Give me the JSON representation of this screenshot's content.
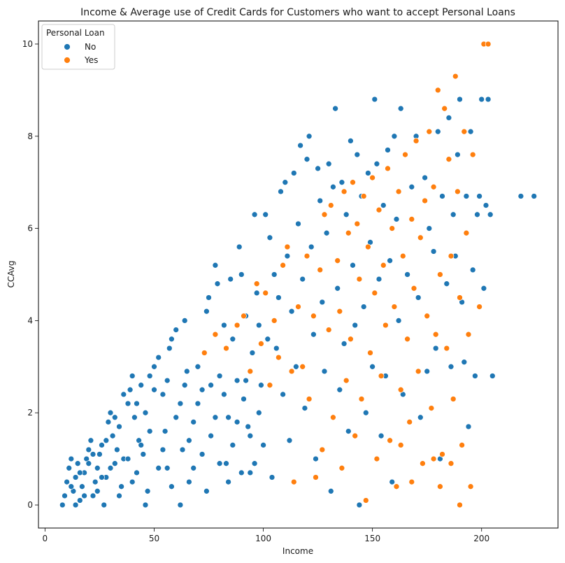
{
  "chart_data": {
    "type": "scatter",
    "title": "Income & Average use of Credit Cards for Customers who want to accept Personal Loans",
    "xlabel": "Income",
    "ylabel": "CCAvg",
    "xlim": [
      -3,
      235
    ],
    "ylim": [
      -0.5,
      10.5
    ],
    "xticks": [
      0,
      50,
      100,
      150,
      200
    ],
    "yticks": [
      0,
      2,
      4,
      6,
      8,
      10
    ],
    "grid": false,
    "legend": {
      "title": "Personal Loan",
      "placement": "top-left",
      "entries": [
        {
          "label": "No",
          "color": "#1f77b4"
        },
        {
          "label": "Yes",
          "color": "#ff7f0e"
        }
      ]
    },
    "series": [
      {
        "name": "No",
        "color": "#1f77b4",
        "points": [
          [
            8,
            0.0
          ],
          [
            9,
            0.2
          ],
          [
            10,
            0.5
          ],
          [
            11,
            0.8
          ],
          [
            12,
            1.0
          ],
          [
            13,
            0.3
          ],
          [
            14,
            0.6
          ],
          [
            15,
            0.9
          ],
          [
            16,
            0.1
          ],
          [
            17,
            0.4
          ],
          [
            18,
            0.7
          ],
          [
            19,
            1.0
          ],
          [
            20,
            1.2
          ],
          [
            21,
            1.4
          ],
          [
            22,
            0.2
          ],
          [
            23,
            0.5
          ],
          [
            24,
            0.8
          ],
          [
            25,
            1.1
          ],
          [
            26,
            1.3
          ],
          [
            27,
            0.0
          ],
          [
            28,
            0.6
          ],
          [
            29,
            1.8
          ],
          [
            30,
            2.0
          ],
          [
            31,
            1.5
          ],
          [
            32,
            0.9
          ],
          [
            33,
            1.2
          ],
          [
            34,
            1.7
          ],
          [
            35,
            0.4
          ],
          [
            36,
            1.0
          ],
          [
            38,
            2.2
          ],
          [
            39,
            2.5
          ],
          [
            40,
            2.8
          ],
          [
            41,
            1.9
          ],
          [
            42,
            0.7
          ],
          [
            43,
            1.4
          ],
          [
            44,
            2.6
          ],
          [
            45,
            1.1
          ],
          [
            46,
            2.0
          ],
          [
            47,
            0.3
          ],
          [
            48,
            2.8
          ],
          [
            50,
            3.0
          ],
          [
            52,
            3.2
          ],
          [
            54,
            2.4
          ],
          [
            55,
            1.6
          ],
          [
            56,
            0.8
          ],
          [
            57,
            3.4
          ],
          [
            58,
            3.6
          ],
          [
            60,
            3.8
          ],
          [
            62,
            2.2
          ],
          [
            63,
            1.2
          ],
          [
            64,
            4.0
          ],
          [
            65,
            2.9
          ],
          [
            66,
            0.5
          ],
          [
            68,
            1.8
          ],
          [
            70,
            3.0
          ],
          [
            72,
            2.5
          ],
          [
            74,
            4.2
          ],
          [
            75,
            4.5
          ],
          [
            76,
            1.5
          ],
          [
            78,
            5.2
          ],
          [
            79,
            4.8
          ],
          [
            80,
            2.8
          ],
          [
            82,
            3.9
          ],
          [
            83,
            0.9
          ],
          [
            84,
            1.9
          ],
          [
            85,
            4.9
          ],
          [
            86,
            3.6
          ],
          [
            88,
            2.7
          ],
          [
            89,
            5.6
          ],
          [
            90,
            5.0
          ],
          [
            91,
            2.3
          ],
          [
            92,
            4.1
          ],
          [
            93,
            1.7
          ],
          [
            94,
            0.7
          ],
          [
            95,
            3.3
          ],
          [
            96,
            6.3
          ],
          [
            97,
            4.6
          ],
          [
            98,
            3.9
          ],
          [
            99,
            2.6
          ],
          [
            100,
            1.3
          ],
          [
            101,
            6.3
          ],
          [
            102,
            3.6
          ],
          [
            103,
            5.8
          ],
          [
            104,
            0.6
          ],
          [
            105,
            5.0
          ],
          [
            106,
            3.4
          ],
          [
            107,
            4.5
          ],
          [
            108,
            6.8
          ],
          [
            109,
            2.4
          ],
          [
            110,
            7.0
          ],
          [
            111,
            5.4
          ],
          [
            112,
            1.4
          ],
          [
            113,
            4.2
          ],
          [
            114,
            7.2
          ],
          [
            115,
            3.0
          ],
          [
            116,
            6.1
          ],
          [
            117,
            7.8
          ],
          [
            118,
            4.9
          ],
          [
            119,
            2.1
          ],
          [
            120,
            7.5
          ],
          [
            121,
            8.0
          ],
          [
            122,
            5.6
          ],
          [
            123,
            3.7
          ],
          [
            124,
            1.0
          ],
          [
            125,
            7.3
          ],
          [
            126,
            6.6
          ],
          [
            127,
            4.4
          ],
          [
            128,
            2.9
          ],
          [
            129,
            5.9
          ],
          [
            130,
            7.4
          ],
          [
            131,
            0.3
          ],
          [
            132,
            6.9
          ],
          [
            133,
            8.6
          ],
          [
            134,
            4.7
          ],
          [
            135,
            2.5
          ],
          [
            136,
            7.0
          ],
          [
            137,
            3.5
          ],
          [
            138,
            6.3
          ],
          [
            139,
            1.6
          ],
          [
            140,
            7.9
          ],
          [
            141,
            5.2
          ],
          [
            142,
            3.9
          ],
          [
            143,
            7.6
          ],
          [
            144,
            0.0
          ],
          [
            145,
            6.7
          ],
          [
            146,
            4.3
          ],
          [
            147,
            2.0
          ],
          [
            148,
            7.2
          ],
          [
            149,
            5.7
          ],
          [
            150,
            3.0
          ],
          [
            151,
            8.8
          ],
          [
            152,
            7.4
          ],
          [
            153,
            4.9
          ],
          [
            154,
            1.5
          ],
          [
            155,
            6.5
          ],
          [
            156,
            2.8
          ],
          [
            157,
            7.7
          ],
          [
            158,
            5.3
          ],
          [
            159,
            0.5
          ],
          [
            160,
            8.0
          ],
          [
            161,
            6.2
          ],
          [
            162,
            4.0
          ],
          [
            163,
            8.6
          ],
          [
            164,
            2.4
          ],
          [
            165,
            7.6
          ],
          [
            166,
            5.0
          ],
          [
            168,
            6.9
          ],
          [
            170,
            8.0
          ],
          [
            171,
            4.5
          ],
          [
            172,
            1.9
          ],
          [
            174,
            7.1
          ],
          [
            175,
            2.9
          ],
          [
            176,
            6.0
          ],
          [
            178,
            5.5
          ],
          [
            179,
            3.4
          ],
          [
            180,
            8.1
          ],
          [
            181,
            1.0
          ],
          [
            182,
            6.7
          ],
          [
            184,
            4.8
          ],
          [
            185,
            8.4
          ],
          [
            186,
            3.0
          ],
          [
            187,
            6.3
          ],
          [
            188,
            5.4
          ],
          [
            189,
            7.6
          ],
          [
            190,
            8.8
          ],
          [
            191,
            4.4
          ],
          [
            192,
            3.1
          ],
          [
            193,
            6.7
          ],
          [
            194,
            1.7
          ],
          [
            195,
            8.1
          ],
          [
            196,
            5.1
          ],
          [
            197,
            2.8
          ],
          [
            198,
            6.3
          ],
          [
            199,
            6.7
          ],
          [
            200,
            8.8
          ],
          [
            201,
            4.7
          ],
          [
            202,
            6.5
          ],
          [
            203,
            8.8
          ],
          [
            204,
            6.3
          ],
          [
            205,
            2.8
          ],
          [
            218,
            6.7
          ],
          [
            224,
            6.7
          ],
          [
            12,
            0.4
          ],
          [
            14,
            0.0
          ],
          [
            16,
            0.7
          ],
          [
            18,
            0.2
          ],
          [
            20,
            0.9
          ],
          [
            22,
            1.1
          ],
          [
            24,
            0.3
          ],
          [
            26,
            0.6
          ],
          [
            28,
            1.4
          ],
          [
            30,
            0.8
          ],
          [
            32,
            1.9
          ],
          [
            34,
            0.2
          ],
          [
            36,
            2.4
          ],
          [
            38,
            1.0
          ],
          [
            40,
            0.5
          ],
          [
            42,
            2.2
          ],
          [
            44,
            1.3
          ],
          [
            46,
            0.0
          ],
          [
            48,
            1.6
          ],
          [
            50,
            2.5
          ],
          [
            52,
            0.8
          ],
          [
            54,
            1.2
          ],
          [
            56,
            2.7
          ],
          [
            58,
            0.4
          ],
          [
            60,
            1.9
          ],
          [
            62,
            0.0
          ],
          [
            64,
            2.6
          ],
          [
            66,
            1.4
          ],
          [
            68,
            0.8
          ],
          [
            70,
            2.2
          ],
          [
            72,
            1.1
          ],
          [
            74,
            0.3
          ],
          [
            76,
            2.6
          ],
          [
            78,
            1.9
          ],
          [
            80,
            0.9
          ],
          [
            82,
            2.4
          ],
          [
            84,
            0.5
          ],
          [
            86,
            1.3
          ],
          [
            88,
            1.8
          ],
          [
            90,
            0.7
          ],
          [
            92,
            2.7
          ],
          [
            94,
            1.5
          ],
          [
            96,
            0.9
          ],
          [
            98,
            2.0
          ]
        ]
      },
      {
        "name": "Yes",
        "color": "#ff7f0e",
        "points": [
          [
            73,
            3.3
          ],
          [
            78,
            3.7
          ],
          [
            83,
            3.4
          ],
          [
            88,
            3.9
          ],
          [
            91,
            4.1
          ],
          [
            94,
            2.9
          ],
          [
            97,
            4.8
          ],
          [
            99,
            3.5
          ],
          [
            101,
            4.6
          ],
          [
            103,
            2.6
          ],
          [
            105,
            4.0
          ],
          [
            107,
            3.2
          ],
          [
            109,
            5.2
          ],
          [
            111,
            5.6
          ],
          [
            113,
            2.9
          ],
          [
            114,
            0.5
          ],
          [
            116,
            4.3
          ],
          [
            118,
            3.0
          ],
          [
            120,
            5.4
          ],
          [
            121,
            2.3
          ],
          [
            123,
            4.1
          ],
          [
            124,
            0.6
          ],
          [
            126,
            5.1
          ],
          [
            127,
            1.2
          ],
          [
            128,
            6.3
          ],
          [
            130,
            3.8
          ],
          [
            131,
            6.5
          ],
          [
            132,
            1.9
          ],
          [
            134,
            5.3
          ],
          [
            135,
            4.2
          ],
          [
            136,
            0.8
          ],
          [
            137,
            6.8
          ],
          [
            138,
            2.7
          ],
          [
            139,
            5.9
          ],
          [
            140,
            3.6
          ],
          [
            141,
            7.0
          ],
          [
            142,
            1.5
          ],
          [
            143,
            6.1
          ],
          [
            144,
            4.9
          ],
          [
            145,
            2.3
          ],
          [
            146,
            6.7
          ],
          [
            147,
            0.1
          ],
          [
            148,
            5.6
          ],
          [
            149,
            3.3
          ],
          [
            150,
            7.1
          ],
          [
            151,
            4.6
          ],
          [
            152,
            1.0
          ],
          [
            153,
            6.4
          ],
          [
            154,
            2.8
          ],
          [
            155,
            5.2
          ],
          [
            156,
            3.9
          ],
          [
            157,
            7.3
          ],
          [
            158,
            1.4
          ],
          [
            159,
            6.0
          ],
          [
            160,
            4.3
          ],
          [
            161,
            0.4
          ],
          [
            162,
            6.8
          ],
          [
            163,
            2.5
          ],
          [
            164,
            5.4
          ],
          [
            165,
            7.6
          ],
          [
            166,
            3.6
          ],
          [
            167,
            1.8
          ],
          [
            168,
            6.2
          ],
          [
            169,
            4.7
          ],
          [
            170,
            7.9
          ],
          [
            171,
            2.9
          ],
          [
            172,
            5.8
          ],
          [
            173,
            0.9
          ],
          [
            174,
            6.6
          ],
          [
            175,
            4.1
          ],
          [
            176,
            8.1
          ],
          [
            177,
            2.1
          ],
          [
            178,
            6.9
          ],
          [
            179,
            3.7
          ],
          [
            180,
            9.0
          ],
          [
            181,
            5.0
          ],
          [
            182,
            1.1
          ],
          [
            183,
            8.6
          ],
          [
            184,
            3.4
          ],
          [
            185,
            7.5
          ],
          [
            186,
            5.4
          ],
          [
            187,
            2.3
          ],
          [
            188,
            9.3
          ],
          [
            189,
            6.8
          ],
          [
            190,
            4.5
          ],
          [
            191,
            1.3
          ],
          [
            192,
            8.1
          ],
          [
            193,
            5.9
          ],
          [
            194,
            3.7
          ],
          [
            195,
            0.4
          ],
          [
            196,
            7.6
          ],
          [
            190,
            0.0
          ],
          [
            181,
            0.4
          ],
          [
            178,
            1.0
          ],
          [
            186,
            0.9
          ],
          [
            199,
            4.3
          ],
          [
            201,
            10.0
          ],
          [
            203,
            10.0
          ],
          [
            168,
            0.5
          ],
          [
            163,
            1.3
          ]
        ]
      }
    ]
  }
}
